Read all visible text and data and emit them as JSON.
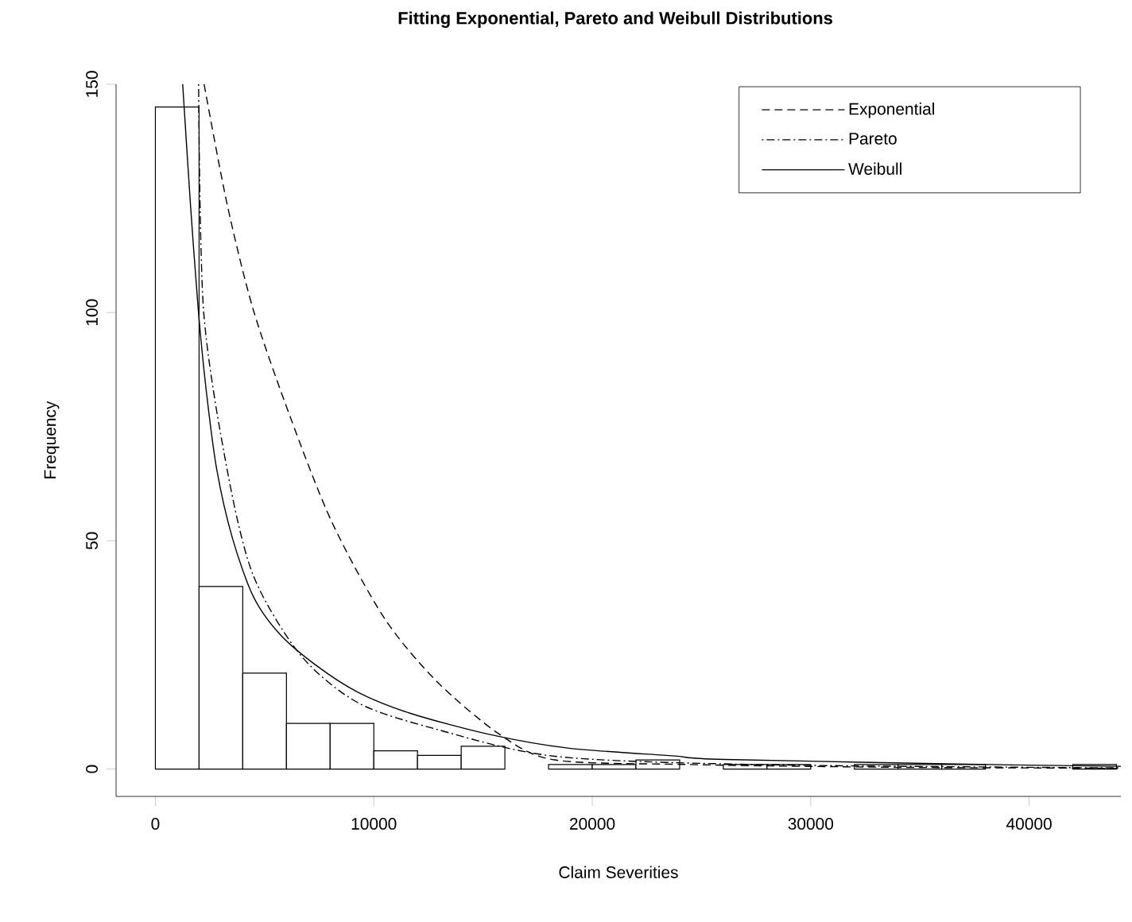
{
  "chart_data": {
    "type": "histogram",
    "title": "Fitting Exponential, Pareto and Weibull Distributions",
    "xlabel": "Claim Severities",
    "ylabel": "Frequency",
    "bins": [
      0,
      2000,
      4000,
      6000,
      8000,
      10000,
      12000,
      14000,
      16000,
      18000,
      20000,
      22000,
      24000,
      26000,
      28000,
      30000,
      32000,
      34000,
      36000,
      38000,
      40000,
      42000,
      44000
    ],
    "values": [
      145,
      40,
      21,
      10,
      10,
      4,
      3,
      5,
      0,
      1,
      1,
      2,
      0,
      1,
      1,
      0,
      1,
      1,
      1,
      0,
      0,
      1
    ],
    "color": "#ffffff",
    "xlim": [
      -1800,
      44200
    ],
    "ylim": [
      -6,
      150
    ],
    "xticks": [
      0,
      10000,
      20000,
      30000,
      40000
    ],
    "yticks": [
      0,
      50,
      100,
      150
    ],
    "grid": false,
    "legend": "top right",
    "series": [
      {
        "name": "Exponential",
        "type": "line",
        "line_style": "dashed",
        "color": "#000000",
        "x": [
          2230,
          3281,
          4482,
          6160,
          8079,
          10475,
          12878,
          15755,
          18270,
          24266,
          33259,
          42250,
          44200
        ],
        "values": [
          150,
          123.8,
          100.6,
          77.3,
          54.1,
          33.1,
          19.2,
          7.6,
          2.0,
          1.0,
          0.4,
          0.2,
          0.1
        ]
      },
      {
        "name": "Pareto",
        "type": "line",
        "line_style": "dashdot",
        "color": "#000000",
        "x": [
          1980,
          2204,
          3281,
          4482,
          6640,
          9281,
          12878,
          18270,
          27266,
          42250,
          44200
        ],
        "values": [
          150,
          100.6,
          65.7,
          42.4,
          25,
          14.5,
          8.7,
          2.8,
          1.0,
          0.3,
          0.3
        ]
      },
      {
        "name": "Weibull",
        "type": "line",
        "line_style": "solid",
        "color": "#000000",
        "x": [
          1250,
          1604,
          1964,
          2324,
          2806,
          3525,
          4482,
          5683,
          7360,
          9281,
          11676,
          15273,
          18870,
          23670,
          26064,
          39230,
          44200
        ],
        "values": [
          150,
          123.8,
          100.6,
          83.1,
          65.7,
          50.6,
          37.8,
          29.6,
          22.7,
          16.8,
          12.2,
          7.6,
          4.6,
          2.9,
          2.1,
          0.9,
          0.6
        ]
      }
    ]
  }
}
